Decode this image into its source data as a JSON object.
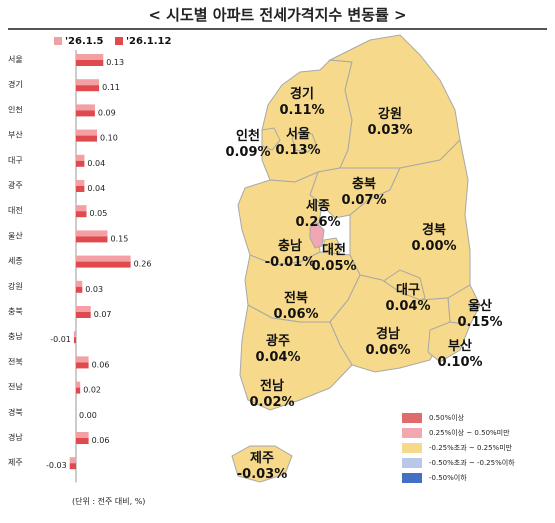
{
  "title": "< 시도별 아파트 전세가격지수 변동률 >",
  "unit_note": "(단위 : 전주 대비, %)",
  "colors": {
    "prev": "#f3a0a4",
    "curr": "#e04a4f",
    "map_fill": "#f6d98a",
    "map_stroke": "#a8a8a8",
    "sejong_fill": "#f0a7b3"
  },
  "chart_data": {
    "type": "bar",
    "orientation": "horizontal",
    "categories": [
      "서울",
      "경기",
      "인천",
      "부산",
      "대구",
      "광주",
      "대전",
      "울산",
      "세종",
      "강원",
      "충북",
      "충남",
      "전북",
      "전남",
      "경북",
      "경남",
      "제주"
    ],
    "series": [
      {
        "name": "'26.1.5",
        "values": [
          0.13,
          0.11,
          0.09,
          0.1,
          0.04,
          0.04,
          0.05,
          0.15,
          0.26,
          0.03,
          0.07,
          -0.01,
          0.06,
          0.02,
          0.0,
          0.06,
          -0.03
        ]
      },
      {
        "name": "'26.1.12",
        "values": [
          0.13,
          0.11,
          0.09,
          0.1,
          0.04,
          0.04,
          0.05,
          0.15,
          0.26,
          0.03,
          0.07,
          -0.01,
          0.06,
          0.02,
          0.0,
          0.06,
          -0.03
        ]
      }
    ],
    "data_labels": [
      "0.13",
      "0.11",
      "0.09",
      "0.10",
      "0.04",
      "0.04",
      "0.05",
      "0.15",
      "0.26",
      "0.03",
      "0.07",
      "-0.01",
      "0.06",
      "0.02",
      "0.00",
      "0.06",
      "-0.03"
    ]
  },
  "map": {
    "regions": [
      {
        "id": "gyeonggi",
        "name": "경기",
        "value": "0.11%"
      },
      {
        "id": "gangwon",
        "name": "강원",
        "value": "0.03%"
      },
      {
        "id": "incheon",
        "name": "인천",
        "value": "0.09%"
      },
      {
        "id": "seoul",
        "name": "서울",
        "value": "0.13%"
      },
      {
        "id": "chungbuk",
        "name": "충북",
        "value": "0.07%"
      },
      {
        "id": "sejong",
        "name": "세종",
        "value": "0.26%"
      },
      {
        "id": "chungnam",
        "name": "충남",
        "value": "-0.01%"
      },
      {
        "id": "daejeon",
        "name": "대전",
        "value": "0.05%"
      },
      {
        "id": "gyeongbuk",
        "name": "경북",
        "value": "0.00%"
      },
      {
        "id": "jeonbuk",
        "name": "전북",
        "value": "0.06%"
      },
      {
        "id": "daegu",
        "name": "대구",
        "value": "0.04%"
      },
      {
        "id": "ulsan",
        "name": "울산",
        "value": "0.15%"
      },
      {
        "id": "gwangju",
        "name": "광주",
        "value": "0.04%"
      },
      {
        "id": "gyeongnam",
        "name": "경남",
        "value": "0.06%"
      },
      {
        "id": "busan",
        "name": "부산",
        "value": "0.10%"
      },
      {
        "id": "jeonnam",
        "name": "전남",
        "value": "0.02%"
      },
      {
        "id": "jeju",
        "name": "제주",
        "value": "-0.03%"
      }
    ],
    "legend": [
      {
        "label": "0.50%이상",
        "color": "#e06b6b"
      },
      {
        "label": "0.25%이상 ~ 0.50%미만",
        "color": "#f2a8b0"
      },
      {
        "label": "-0.25%초과 ~ 0.25%미만",
        "color": "#f6d98a"
      },
      {
        "label": "-0.50%초과 ~ -0.25%이하",
        "color": "#b9c8e6"
      },
      {
        "label": "-0.50%이하",
        "color": "#4470c4"
      }
    ]
  }
}
